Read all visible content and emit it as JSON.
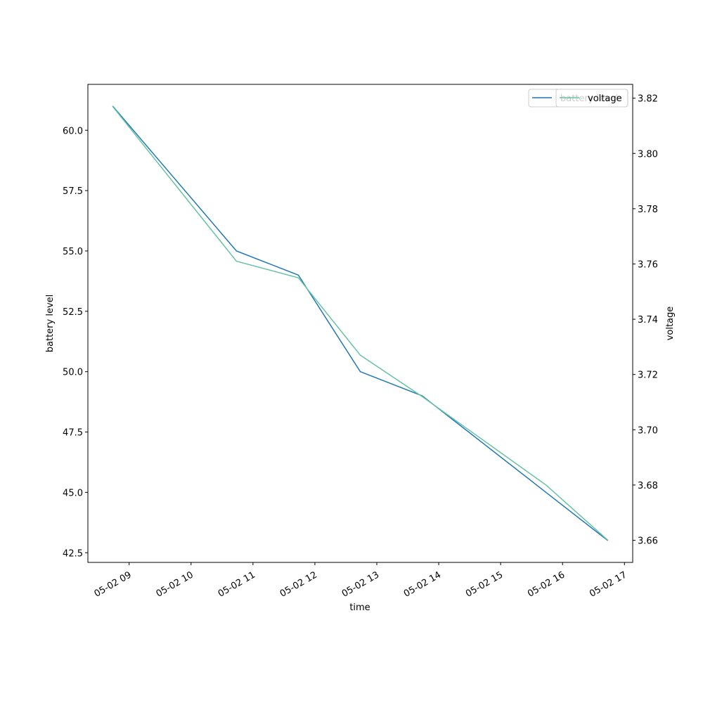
{
  "chart_data": {
    "type": "line",
    "x_label": "time",
    "y_label": "battery level",
    "y2_label": "voltage",
    "x": [
      "05-02 08:44",
      "05-02 09:44",
      "05-02 10:44",
      "05-02 11:44",
      "05-02 12:44",
      "05-02 13:44",
      "05-02 14:44",
      "05-02 15:44",
      "05-02 16:44"
    ],
    "xlim": [
      "05-02 08:20",
      "05-02 17:08"
    ],
    "xticks": [
      "05-02 09",
      "05-02 10",
      "05-02 11",
      "05-02 12",
      "05-02 13",
      "05-02 14",
      "05-02 15",
      "05-02 16",
      "05-02 17"
    ],
    "ylim": [
      42.1,
      61.9
    ],
    "yticks": [
      {
        "value": 42.5,
        "label": "42.5"
      },
      {
        "value": 45,
        "label": "45.0"
      },
      {
        "value": 47.5,
        "label": "47.5"
      },
      {
        "value": 50,
        "label": "50.0"
      },
      {
        "value": 52.5,
        "label": "52.5"
      },
      {
        "value": 55,
        "label": "55.0"
      },
      {
        "value": 57.5,
        "label": "57.5"
      },
      {
        "value": 60,
        "label": "60.0"
      }
    ],
    "y2lim": [
      3.652,
      3.825
    ],
    "y2ticks": [
      3.66,
      3.68,
      {
        "value": 3.7,
        "label": "3.70"
      },
      3.72,
      3.74,
      3.76,
      3.78,
      {
        "value": 3.8,
        "label": "3.80"
      },
      3.82
    ],
    "series": [
      {
        "name": "battery level",
        "color": "#1f77b4",
        "values": [
          61,
          58,
          55,
          54,
          50,
          49,
          47,
          45,
          43
        ]
      },
      {
        "name": "voltage",
        "color": "#66c2a5",
        "axis": "y2",
        "values": [
          3.817,
          3.789,
          3.761,
          3.755,
          3.727,
          3.712,
          3.696,
          3.68,
          3.66
        ]
      }
    ]
  }
}
